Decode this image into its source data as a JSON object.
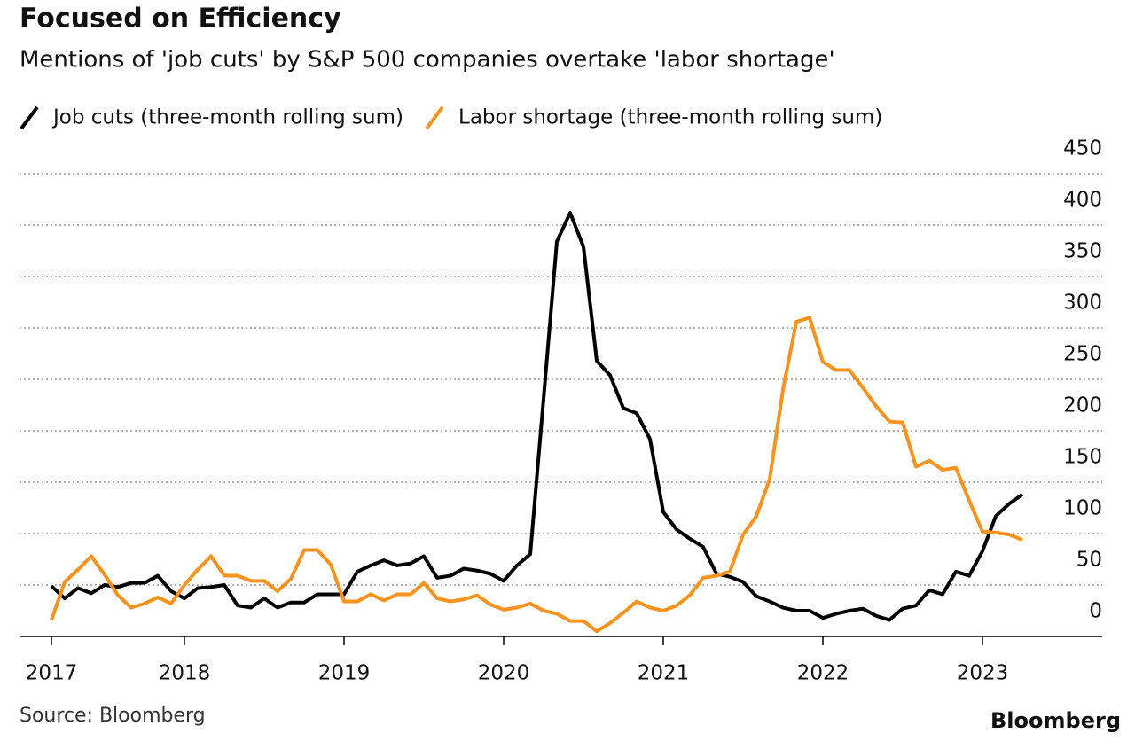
{
  "chart_data": {
    "type": "line",
    "title": "Focused on Efficiency",
    "subtitle": "Mentions of 'job cuts' by S&P 500 companies overtake 'labor shortage'",
    "source": "Source: Bloomberg",
    "credit": "Bloomberg",
    "categories": [
      "2017",
      null,
      null,
      null,
      null,
      null,
      null,
      null,
      null,
      null,
      "2018",
      null,
      null,
      null,
      null,
      null,
      null,
      null,
      null,
      null,
      null,
      null,
      "2019",
      null,
      null,
      null,
      null,
      null,
      null,
      null,
      null,
      null,
      null,
      null,
      "2020",
      null,
      null,
      null,
      null,
      null,
      null,
      null,
      null,
      null,
      null,
      null,
      "2021",
      null,
      null,
      null,
      null,
      null,
      null,
      null,
      null,
      null,
      null,
      null,
      "2022",
      null,
      null,
      null,
      null,
      null,
      null,
      null,
      null,
      null,
      null,
      null,
      "2023",
      null,
      null,
      null
    ],
    "series": [
      {
        "name": "Job cuts (three-month rolling sum)",
        "color": "#000000",
        "values": [
          49,
          37,
          47,
          42,
          50,
          48,
          52,
          52,
          59,
          44,
          37,
          47,
          48,
          50,
          30,
          28,
          37,
          28,
          33,
          33,
          41,
          41,
          41,
          63,
          69,
          74,
          69,
          71,
          78,
          57,
          59,
          66,
          64,
          61,
          54,
          69,
          80,
          231,
          384,
          412,
          379,
          268,
          254,
          222,
          217,
          192,
          121,
          104,
          95,
          87,
          61,
          58,
          53,
          39,
          34,
          28,
          25,
          25,
          18,
          22,
          25,
          27,
          20,
          16,
          27,
          30,
          45,
          41,
          63,
          59,
          83,
          117,
          129,
          138
        ]
      },
      {
        "name": "Labor shortage (three-month rolling sum)",
        "color": "#f7931e",
        "values": [
          16,
          53,
          65,
          78,
          60,
          40,
          28,
          32,
          38,
          32,
          50,
          65,
          78,
          59,
          59,
          54,
          54,
          44,
          56,
          84,
          84,
          70,
          34,
          34,
          41,
          35,
          41,
          41,
          52,
          37,
          34,
          36,
          40,
          31,
          26,
          28,
          32,
          25,
          22,
          15,
          15,
          5,
          13,
          23,
          34,
          28,
          25,
          30,
          40,
          57,
          59,
          63,
          99,
          117,
          153,
          240,
          306,
          310,
          267,
          259,
          259,
          242,
          224,
          209,
          208,
          165,
          171,
          162,
          164,
          132,
          102,
          101,
          99,
          94
        ]
      }
    ],
    "ylim": [
      0,
      450
    ],
    "yticks": [
      0,
      50,
      100,
      150,
      200,
      250,
      300,
      350,
      400,
      450
    ],
    "grid": true
  }
}
